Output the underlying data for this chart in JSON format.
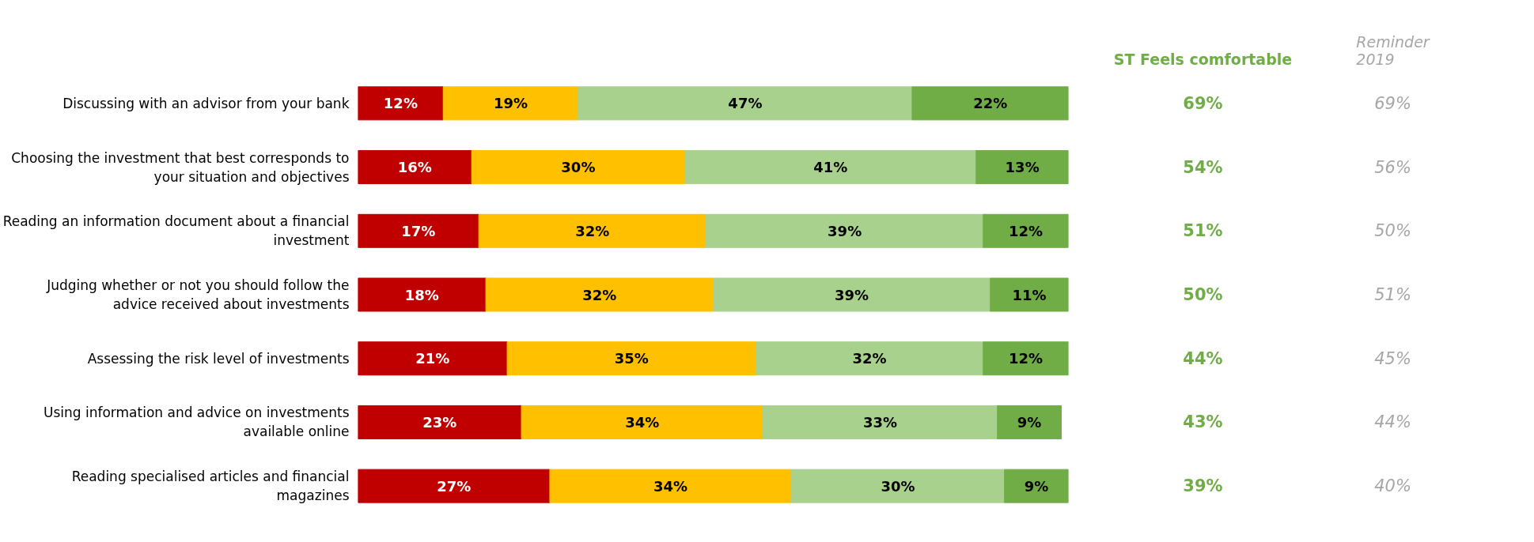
{
  "chart_data": [
    {
      "type": "bar",
      "orientation": "horizontal",
      "stacked": true,
      "grid": false,
      "categories": [
        "Discussing with an advisor from your bank",
        "Choosing the investment that best corresponds to your situation and objectives",
        "Reading an information document about a financial investment",
        "Judging whether or not you should follow the advice received about investments",
        "Assessing the risk level of investments",
        "Using information and advice on investments available online",
        "Reading specialised articles and financial magazines"
      ],
      "series": [
        {
          "color": "#c00000",
          "values": [
            12,
            16,
            17,
            18,
            21,
            23,
            27
          ],
          "value_labels": [
            "12%",
            "16%",
            "17%",
            "18%",
            "21%",
            "23%",
            "27%"
          ]
        },
        {
          "color": "#ffc000",
          "values": [
            19,
            30,
            32,
            32,
            35,
            34,
            34
          ],
          "value_labels": [
            "19%",
            "30%",
            "32%",
            "32%",
            "35%",
            "34%",
            "34%"
          ]
        },
        {
          "color": "#a9d18e",
          "values": [
            47,
            41,
            39,
            39,
            32,
            33,
            30
          ],
          "value_labels": [
            "47%",
            "41%",
            "39%",
            "39%",
            "32%",
            "33%",
            "30%"
          ]
        },
        {
          "color": "#70ad47",
          "values": [
            22,
            13,
            12,
            11,
            12,
            9,
            9
          ],
          "value_labels": [
            "22%",
            "13%",
            "12%",
            "11%",
            "12%",
            "9%",
            "9%"
          ]
        }
      ]
    },
    {
      "type": "other",
      "title": "ST Feels comfortable",
      "color": "#70ad47",
      "annotations": [
        "69%",
        "54%",
        "51%",
        "50%",
        "44%",
        "43%",
        "39%"
      ]
    },
    {
      "type": "other",
      "title": "Reminder 2019",
      "color": "#a6a6a6",
      "annotations": [
        "69%",
        "56%",
        "50%",
        "51%",
        "45%",
        "44%",
        "40%"
      ]
    }
  ]
}
